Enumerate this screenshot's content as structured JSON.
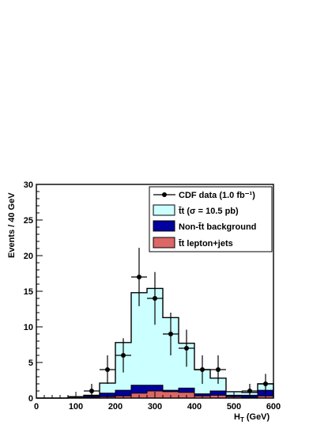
{
  "chart_data": {
    "type": "histogram",
    "xlabel": "H",
    "xlabel_sub": "T",
    "xlabel_unit": "(GeV)",
    "ylabel": "Events / 40 GeV",
    "xlim": [
      0,
      600
    ],
    "ylim": [
      0,
      30
    ],
    "x_ticks": [
      0,
      100,
      200,
      300,
      400,
      500,
      600
    ],
    "y_ticks": [
      0,
      5,
      10,
      15,
      20,
      25,
      30
    ],
    "bin_edges": [
      0,
      40,
      80,
      120,
      160,
      200,
      240,
      280,
      320,
      360,
      400,
      440,
      480,
      520,
      560,
      600
    ],
    "bin_width": 40,
    "legend_position": "top-right",
    "colors": {
      "ttbar": "#ccffff",
      "non_ttbar": "#0000a0",
      "lepton_jets": "#dd6666",
      "data": "#000000"
    },
    "series": [
      {
        "name": "t̄t (σ = 10.5 pb)",
        "kind": "stack_total",
        "values": [
          0,
          0,
          0.2,
          0.4,
          2.1,
          7.8,
          14.8,
          15.4,
          11.3,
          7.7,
          4.0,
          2.8,
          0.9,
          0.8,
          2.0
        ]
      },
      {
        "name": "Non-t̄t background",
        "kind": "stack_middle",
        "values": [
          0,
          0,
          0.1,
          0.3,
          0.7,
          1.1,
          1.8,
          1.8,
          1.1,
          1.4,
          0.6,
          1.0,
          0.4,
          0.4,
          1.1
        ]
      },
      {
        "name": "t̄t lepton+jets",
        "kind": "stack_bottom",
        "values": [
          0,
          0,
          0,
          0.1,
          0.2,
          0.3,
          0.7,
          1.0,
          0.9,
          0.8,
          0.3,
          0.4,
          0.2,
          0.1,
          0.3
        ]
      },
      {
        "name": "CDF data (1.0 fb⁻¹)",
        "kind": "data_points",
        "x": [
          140,
          180,
          220,
          260,
          300,
          340,
          380,
          420,
          460,
          540,
          580
        ],
        "values": [
          1,
          4,
          6,
          17,
          14,
          9,
          7,
          4,
          4,
          1,
          2
        ],
        "errors": [
          1.0,
          2.0,
          2.4,
          4.1,
          3.7,
          3.0,
          2.6,
          2.0,
          2.0,
          1.0,
          1.4
        ]
      }
    ]
  }
}
